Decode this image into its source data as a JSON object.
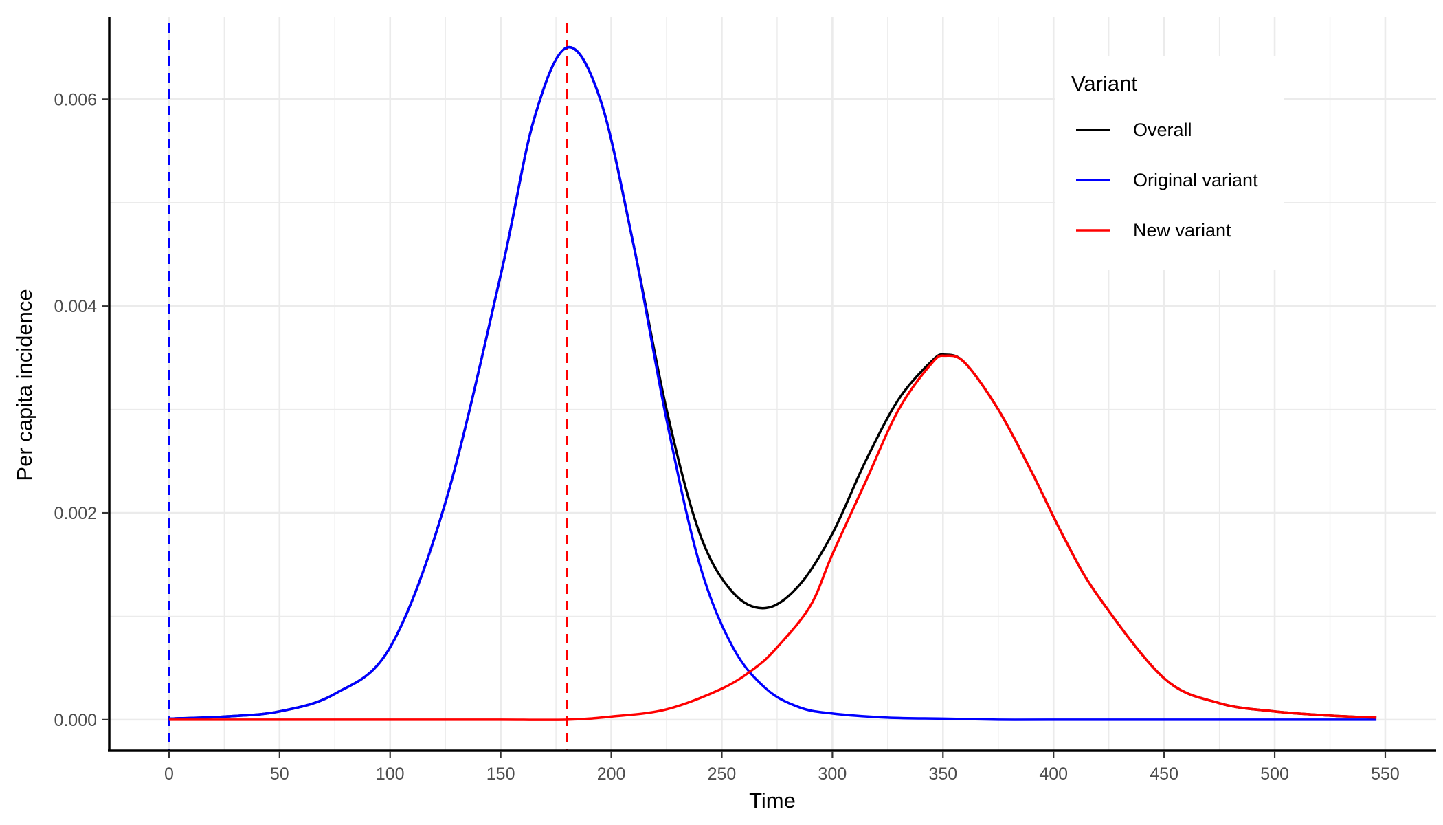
{
  "chart_data": {
    "type": "line",
    "xlabel": "Time",
    "ylabel": "Per capita incidence",
    "xlim": [
      -27,
      573
    ],
    "ylim": [
      -0.0003,
      0.0068
    ],
    "x_ticks": [
      0,
      50,
      100,
      150,
      200,
      250,
      300,
      350,
      400,
      450,
      500,
      550
    ],
    "x_tick_labels": [
      "0",
      "50",
      "100",
      "150",
      "200",
      "250",
      "300",
      "350",
      "400",
      "450",
      "500",
      "550"
    ],
    "y_ticks": [
      0,
      0.002,
      0.004,
      0.006
    ],
    "y_tick_labels": [
      "0.000",
      "0.002",
      "0.004",
      "0.006"
    ],
    "grid": true,
    "legend": {
      "title": "Variant",
      "position": "top-right",
      "entries": [
        "Overall",
        "Original variant",
        "New variant"
      ]
    },
    "vlines": [
      {
        "x": 0,
        "color": "#0000ff",
        "style": "dashed"
      },
      {
        "x": 180,
        "color": "#ff0000",
        "style": "dashed"
      }
    ],
    "series": [
      {
        "name": "Overall",
        "color": "#000000",
        "x": [
          0,
          25,
          50,
          75,
          100,
          125,
          150,
          165,
          180,
          195,
          210,
          225,
          240,
          255,
          270,
          285,
          300,
          315,
          330,
          345,
          351,
          360,
          375,
          390,
          405,
          420,
          450,
          475,
          500,
          525,
          546
        ],
        "y": [
          1e-05,
          3e-05,
          8e-05,
          0.00025,
          0.0007,
          0.0021,
          0.0043,
          0.0058,
          0.0065,
          0.006,
          0.0046,
          0.003,
          0.0018,
          0.00123,
          0.00108,
          0.0013,
          0.0018,
          0.0025,
          0.0031,
          0.00347,
          0.00353,
          0.00345,
          0.003,
          0.0024,
          0.00175,
          0.0012,
          0.0004,
          0.00016,
          8e-05,
          4e-05,
          2e-05
        ]
      },
      {
        "name": "Original variant",
        "color": "#0000ff",
        "x": [
          0,
          25,
          50,
          75,
          100,
          125,
          150,
          165,
          180,
          195,
          210,
          225,
          240,
          255,
          270,
          285,
          300,
          325,
          350,
          375,
          400,
          450,
          500,
          546
        ],
        "y": [
          1e-05,
          3e-05,
          8e-05,
          0.00025,
          0.0007,
          0.0021,
          0.0043,
          0.0058,
          0.0065,
          0.006,
          0.0046,
          0.0029,
          0.0015,
          0.0007,
          0.0003,
          0.00012,
          6e-05,
          2e-05,
          1e-05,
          0.0,
          0.0,
          0.0,
          0.0,
          0.0
        ]
      },
      {
        "name": "New variant",
        "color": "#ff0000",
        "x": [
          0,
          50,
          100,
          150,
          180,
          200,
          225,
          250,
          265,
          275,
          290,
          300,
          315,
          330,
          345,
          351,
          360,
          375,
          390,
          405,
          420,
          450,
          475,
          500,
          525,
          546
        ],
        "y": [
          0.0,
          0.0,
          0.0,
          0.0,
          0.0,
          3e-05,
          0.0001,
          0.0003,
          0.0005,
          0.0007,
          0.0011,
          0.0016,
          0.0023,
          0.003,
          0.00345,
          0.00352,
          0.00345,
          0.003,
          0.0024,
          0.00175,
          0.0012,
          0.0004,
          0.00016,
          8e-05,
          4e-05,
          2e-05
        ]
      }
    ]
  }
}
